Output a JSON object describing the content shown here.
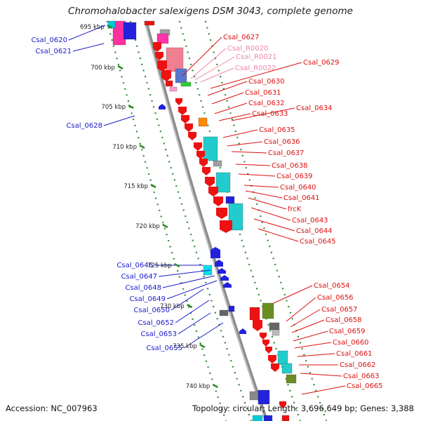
{
  "title": "Chromohalobacter salexigens DSM 3043, complete genome",
  "footer": {
    "accession": "Accession: NC_007963",
    "topology": "Topology: circular; Length: 3,696,649 bp; Genes: 3,388"
  },
  "colors": {
    "backbone": "#8c8c8c",
    "scale_dots": "#2e8b2e",
    "left_labels": "#1a1acc",
    "right_labels": "#dd1111",
    "rna_labels": "#ee88aa"
  },
  "scale_ticks": [
    "695 kbp",
    "700 kbp",
    "705 kbp",
    "710 kbp",
    "715 kbp",
    "720 kbp",
    "725 kbp",
    "730 kbp",
    "735 kbp",
    "740 kbp"
  ],
  "left_genes": [
    "Csal_0620",
    "Csal_0621",
    "Csal_0628",
    "Csal_0646",
    "Csal_0647",
    "Csal_0648",
    "Csal_0649",
    "Csal_0650",
    "Csal_0652",
    "Csal_0653",
    "Csal_0655"
  ],
  "right_genes": [
    "Csal_0627",
    "Csal_R0020",
    "Csal_R0021",
    "Csal_R0022",
    "Csal_0629",
    "Csal_0630",
    "Csal_0631",
    "Csal_0632",
    "Csal_0633",
    "Csal_0634",
    "Csal_0635",
    "Csal_0636",
    "Csal_0637",
    "Csal_0638",
    "Csal_0639",
    "Csal_0640",
    "Csal_0641",
    "frcK",
    "Csal_0643",
    "Csal_0644",
    "Csal_0645",
    "Csal_0654",
    "Csal_0656",
    "Csal_0657",
    "Csal_0658",
    "Csal_0659",
    "Csal_0660",
    "Csal_0661",
    "Csal_0662",
    "Csal_0663",
    "Csal_0665"
  ]
}
